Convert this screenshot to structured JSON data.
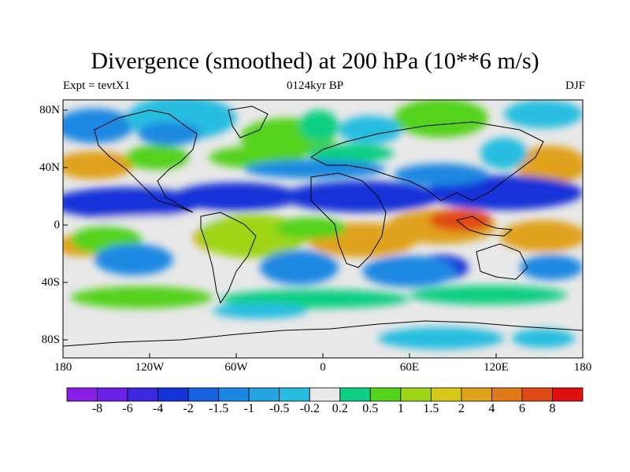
{
  "header": {
    "title": "Divergence (smoothed) at 200 hPa (10**6 m/s)",
    "experiment": "Expt = tevtX1",
    "time_period": "0124kyr BP",
    "season": "DJF"
  },
  "axes": {
    "lat_labels": [
      "80N",
      "40N",
      "0",
      "40S",
      "80S"
    ],
    "lon_labels": [
      "180",
      "120W",
      "60W",
      "0",
      "60E",
      "120E",
      "180"
    ]
  },
  "colorbar": {
    "labels": [
      "-8",
      "-6",
      "-4",
      "-2",
      "-1.5",
      "-1",
      "-0.5",
      "-0.2",
      "0.2",
      "0.5",
      "1",
      "1.5",
      "2",
      "4",
      "6",
      "8"
    ],
    "colors": [
      "#8a1ee6",
      "#6a20e6",
      "#3c28e0",
      "#1532d8",
      "#1462de",
      "#1a88e2",
      "#25a3e0",
      "#28bde0",
      "#e8e8e8",
      "#0dcf83",
      "#55d21c",
      "#9ed618",
      "#d6c818",
      "#e0a21a",
      "#e07a18",
      "#e04a16",
      "#e01010"
    ]
  },
  "field_colors": {
    "neutral": "#e8e8e8",
    "strong_negative": "#1532d8",
    "negative": "#1a88e2",
    "weak_negative": "#28bde0",
    "weak_positive": "#0dcf83",
    "positive": "#55d21c",
    "moderate_positive": "#9ed618",
    "strong_positive": "#e0a21a",
    "very_strong_positive": "#e04a16",
    "coastline": "#000000"
  }
}
